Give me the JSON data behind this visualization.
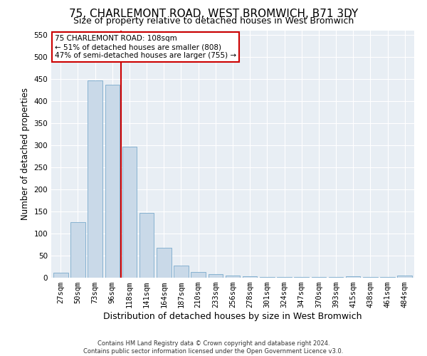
{
  "title": "75, CHARLEMONT ROAD, WEST BROMWICH, B71 3DY",
  "subtitle": "Size of property relative to detached houses in West Bromwich",
  "xlabel": "Distribution of detached houses by size in West Bromwich",
  "ylabel": "Number of detached properties",
  "bar_labels": [
    "27sqm",
    "50sqm",
    "73sqm",
    "96sqm",
    "118sqm",
    "141sqm",
    "164sqm",
    "187sqm",
    "210sqm",
    "233sqm",
    "256sqm",
    "278sqm",
    "301sqm",
    "324sqm",
    "347sqm",
    "370sqm",
    "393sqm",
    "415sqm",
    "438sqm",
    "461sqm",
    "484sqm"
  ],
  "bar_values": [
    12,
    125,
    447,
    437,
    297,
    146,
    68,
    27,
    13,
    8,
    5,
    4,
    2,
    1,
    1,
    1,
    1,
    4,
    1,
    1,
    5
  ],
  "bar_color": "#c9d9e8",
  "bar_edgecolor": "#7aaacc",
  "vline_x": 3.5,
  "vline_color": "#cc0000",
  "annotation_text": "75 CHARLEMONT ROAD: 108sqm\n← 51% of detached houses are smaller (808)\n47% of semi-detached houses are larger (755) →",
  "annotation_box_color": "#ffffff",
  "annotation_box_edgecolor": "#cc0000",
  "ylim": [
    0,
    560
  ],
  "yticks": [
    0,
    50,
    100,
    150,
    200,
    250,
    300,
    350,
    400,
    450,
    500,
    550
  ],
  "footnote": "Contains HM Land Registry data © Crown copyright and database right 2024.\nContains public sector information licensed under the Open Government Licence v3.0.",
  "plot_bg_color": "#e8eef4",
  "title_fontsize": 11,
  "subtitle_fontsize": 9,
  "xlabel_fontsize": 9,
  "ylabel_fontsize": 8.5,
  "tick_fontsize": 7.5,
  "footnote_fontsize": 6,
  "annotation_fontsize": 7.5
}
